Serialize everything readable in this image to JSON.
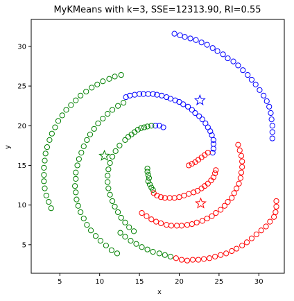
{
  "chart_data": {
    "type": "scatter",
    "title": "MyKMeans with k=3, SSE=12313.90, RI=0.55",
    "xlabel": "x",
    "ylabel": "y",
    "xlim": [
      1.4,
      33.2
    ],
    "ylim": [
      1.4,
      33.4
    ],
    "xticks": [
      5,
      10,
      15,
      20,
      25,
      30
    ],
    "yticks": [
      5,
      10,
      15,
      20,
      25,
      30
    ],
    "grid": false,
    "colors": {
      "cluster_1": "#0000ff",
      "cluster_2": "#008000",
      "cluster_3": "#ff0000"
    },
    "clusters": [
      {
        "color": "#0000ff",
        "centroid": [
          22.6,
          23.2
        ],
        "points": [
          [
            19.4,
            31.6
          ],
          [
            20.1,
            31.4
          ],
          [
            20.7,
            31.2
          ],
          [
            21.4,
            31.0
          ],
          [
            22.1,
            30.8
          ],
          [
            22.8,
            30.5
          ],
          [
            23.5,
            30.2
          ],
          [
            24.2,
            29.8
          ],
          [
            24.8,
            29.4
          ],
          [
            25.5,
            29.0
          ],
          [
            26.1,
            28.5
          ],
          [
            26.8,
            28.1
          ],
          [
            27.4,
            27.6
          ],
          [
            28.0,
            27.0
          ],
          [
            28.6,
            26.4
          ],
          [
            29.1,
            25.8
          ],
          [
            29.6,
            25.2
          ],
          [
            30.1,
            24.5
          ],
          [
            30.6,
            23.8
          ],
          [
            31.0,
            23.1
          ],
          [
            31.3,
            22.4
          ],
          [
            31.5,
            21.6
          ],
          [
            31.6,
            20.8
          ],
          [
            31.7,
            20.0
          ],
          [
            31.7,
            19.2
          ],
          [
            31.7,
            18.4
          ],
          [
            13.3,
            23.6
          ],
          [
            13.8,
            23.8
          ],
          [
            14.4,
            23.9
          ],
          [
            15.0,
            24.0
          ],
          [
            15.5,
            24.0
          ],
          [
            16.1,
            24.0
          ],
          [
            16.7,
            24.0
          ],
          [
            17.2,
            23.9
          ],
          [
            17.8,
            23.8
          ],
          [
            18.4,
            23.6
          ],
          [
            18.9,
            23.4
          ],
          [
            19.5,
            23.2
          ],
          [
            20.0,
            23.0
          ],
          [
            20.5,
            22.7
          ],
          [
            21.1,
            22.4
          ],
          [
            21.6,
            22.0
          ],
          [
            22.0,
            21.6
          ],
          [
            22.5,
            21.2
          ],
          [
            22.9,
            20.8
          ],
          [
            23.3,
            20.3
          ],
          [
            23.6,
            19.8
          ],
          [
            23.9,
            19.3
          ],
          [
            24.1,
            18.8
          ],
          [
            24.3,
            18.2
          ],
          [
            24.3,
            17.7
          ],
          [
            24.3,
            17.1
          ],
          [
            24.2,
            16.6
          ],
          [
            17.0,
            20.0
          ],
          [
            17.5,
            20.0
          ],
          [
            18.0,
            19.8
          ]
        ]
      },
      {
        "color": "#008000",
        "centroid": [
          10.6,
          16.2
        ],
        "points": [
          [
            3.9,
            9.6
          ],
          [
            3.6,
            10.4
          ],
          [
            3.3,
            11.2
          ],
          [
            3.1,
            12.1
          ],
          [
            3.0,
            13.0
          ],
          [
            3.0,
            13.8
          ],
          [
            3.0,
            14.7
          ],
          [
            3.1,
            15.6
          ],
          [
            3.2,
            16.5
          ],
          [
            3.4,
            17.3
          ],
          [
            3.7,
            18.2
          ],
          [
            4.0,
            19.0
          ],
          [
            4.4,
            19.8
          ],
          [
            4.8,
            20.6
          ],
          [
            5.3,
            21.3
          ],
          [
            5.8,
            22.0
          ],
          [
            6.4,
            22.6
          ],
          [
            7.0,
            23.2
          ],
          [
            7.6,
            23.8
          ],
          [
            8.3,
            24.3
          ],
          [
            9.0,
            24.8
          ],
          [
            9.7,
            25.2
          ],
          [
            10.4,
            25.6
          ],
          [
            11.2,
            25.9
          ],
          [
            11.9,
            26.2
          ],
          [
            12.7,
            26.4
          ],
          [
            12.2,
            3.9
          ],
          [
            11.5,
            4.3
          ],
          [
            10.8,
            4.9
          ],
          [
            10.1,
            5.5
          ],
          [
            9.5,
            6.1
          ],
          [
            8.9,
            6.8
          ],
          [
            8.4,
            7.5
          ],
          [
            8.0,
            8.3
          ],
          [
            7.6,
            9.1
          ],
          [
            7.3,
            9.9
          ],
          [
            7.1,
            10.7
          ],
          [
            7.0,
            11.6
          ],
          [
            6.9,
            12.4
          ],
          [
            7.0,
            13.3
          ],
          [
            7.0,
            14.1
          ],
          [
            7.2,
            15.0
          ],
          [
            7.4,
            15.8
          ],
          [
            7.7,
            16.6
          ],
          [
            8.0,
            17.4
          ],
          [
            8.4,
            18.2
          ],
          [
            8.8,
            18.9
          ],
          [
            9.3,
            19.6
          ],
          [
            9.8,
            20.3
          ],
          [
            10.4,
            20.9
          ],
          [
            11.0,
            21.5
          ],
          [
            11.6,
            22.0
          ],
          [
            12.3,
            22.5
          ],
          [
            13.0,
            22.9
          ],
          [
            13.2,
            18.2
          ],
          [
            13.6,
            18.6
          ],
          [
            14.0,
            18.9
          ],
          [
            14.4,
            19.2
          ],
          [
            14.8,
            19.5
          ],
          [
            15.2,
            19.7
          ],
          [
            15.6,
            19.8
          ],
          [
            16.0,
            19.9
          ],
          [
            16.5,
            20.0
          ],
          [
            16.2,
            13.4
          ],
          [
            16.1,
            13.8
          ],
          [
            16.0,
            14.2
          ],
          [
            16.0,
            14.6
          ],
          [
            16.1,
            13.0
          ],
          [
            16.3,
            12.6
          ],
          [
            16.5,
            12.2
          ],
          [
            16.7,
            11.9
          ],
          [
            12.6,
            6.5
          ],
          [
            13.2,
            6.0
          ],
          [
            13.9,
            5.5
          ],
          [
            14.6,
            5.1
          ],
          [
            12.5,
            17.5
          ],
          [
            12.0,
            16.8
          ],
          [
            11.6,
            16.1
          ],
          [
            11.3,
            15.3
          ],
          [
            11.1,
            14.5
          ],
          [
            11.0,
            13.7
          ],
          [
            11.0,
            12.9
          ],
          [
            11.1,
            12.1
          ],
          [
            11.3,
            11.3
          ],
          [
            11.6,
            10.5
          ],
          [
            11.9,
            9.8
          ],
          [
            12.3,
            9.1
          ],
          [
            12.7,
            8.4
          ],
          [
            13.2,
            7.8
          ],
          [
            13.7,
            7.2
          ],
          [
            14.3,
            6.7
          ],
          [
            15.3,
            4.7
          ],
          [
            16.0,
            4.4
          ],
          [
            16.7,
            4.1
          ],
          [
            17.5,
            3.9
          ],
          [
            18.2,
            3.7
          ],
          [
            18.9,
            3.5
          ]
        ]
      },
      {
        "color": "#ff0000",
        "centroid": [
          22.7,
          10.2
        ],
        "points": [
          [
            19.6,
            3.3
          ],
          [
            20.3,
            3.1
          ],
          [
            21.0,
            3.0
          ],
          [
            21.7,
            3.1
          ],
          [
            22.4,
            3.1
          ],
          [
            23.1,
            3.2
          ],
          [
            23.8,
            3.3
          ],
          [
            24.5,
            3.5
          ],
          [
            25.2,
            3.7
          ],
          [
            25.9,
            3.9
          ],
          [
            26.6,
            4.2
          ],
          [
            27.2,
            4.5
          ],
          [
            27.9,
            4.9
          ],
          [
            28.5,
            5.3
          ],
          [
            29.1,
            5.8
          ],
          [
            29.7,
            6.3
          ],
          [
            30.3,
            6.8
          ],
          [
            30.9,
            7.3
          ],
          [
            31.4,
            7.9
          ],
          [
            31.9,
            8.5
          ],
          [
            15.3,
            9.0
          ],
          [
            15.9,
            8.6
          ],
          [
            16.5,
            8.2
          ],
          [
            17.1,
            7.9
          ],
          [
            17.7,
            7.7
          ],
          [
            18.4,
            7.5
          ],
          [
            19.0,
            7.4
          ],
          [
            19.7,
            7.4
          ],
          [
            20.3,
            7.4
          ],
          [
            21.0,
            7.5
          ],
          [
            21.6,
            7.6
          ],
          [
            22.2,
            7.8
          ],
          [
            22.9,
            8.0
          ],
          [
            23.5,
            8.3
          ],
          [
            24.1,
            8.6
          ],
          [
            24.6,
            9.0
          ],
          [
            25.2,
            9.4
          ],
          [
            25.7,
            9.9
          ],
          [
            26.1,
            10.4
          ],
          [
            26.6,
            10.9
          ],
          [
            26.9,
            11.5
          ],
          [
            27.2,
            12.1
          ],
          [
            27.5,
            12.7
          ],
          [
            27.7,
            13.4
          ],
          [
            27.8,
            14.1
          ],
          [
            27.9,
            14.8
          ],
          [
            27.9,
            15.5
          ],
          [
            27.8,
            16.2
          ],
          [
            27.6,
            16.9
          ],
          [
            27.4,
            17.6
          ],
          [
            16.8,
            11.5
          ],
          [
            17.2,
            11.2
          ],
          [
            17.7,
            11.0
          ],
          [
            18.2,
            10.9
          ],
          [
            18.8,
            10.9
          ],
          [
            19.4,
            10.9
          ],
          [
            20.0,
            11.0
          ],
          [
            20.6,
            11.2
          ],
          [
            21.2,
            11.4
          ],
          [
            21.8,
            11.6
          ],
          [
            22.3,
            11.8
          ],
          [
            22.8,
            12.1
          ],
          [
            23.2,
            12.4
          ],
          [
            23.6,
            12.7
          ],
          [
            24.0,
            13.1
          ],
          [
            24.3,
            13.5
          ],
          [
            24.5,
            14.0
          ],
          [
            24.6,
            14.4
          ],
          [
            21.2,
            15.0
          ],
          [
            21.6,
            15.2
          ],
          [
            22.0,
            15.4
          ],
          [
            22.4,
            15.7
          ],
          [
            22.8,
            16.0
          ],
          [
            23.2,
            16.3
          ],
          [
            23.6,
            16.6
          ],
          [
            32.1,
            9.1
          ],
          [
            32.2,
            9.8
          ],
          [
            32.2,
            10.5
          ]
        ]
      }
    ]
  }
}
